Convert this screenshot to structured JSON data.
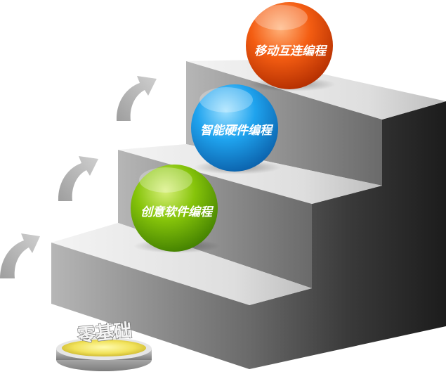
{
  "diagram": {
    "base_label": "零基础",
    "steps": [
      {
        "label": "创意软件编程",
        "color": "#7ab800"
      },
      {
        "label": "智能硬件编程",
        "color": "#1a9be6"
      },
      {
        "label": "移动互连编程",
        "color": "#f25a10"
      }
    ],
    "arrow_color": "#b4b4b4",
    "stair_colors": {
      "top": "#e3e3e3",
      "front": "#8a8a8a",
      "side": "#3a3a3a"
    }
  }
}
